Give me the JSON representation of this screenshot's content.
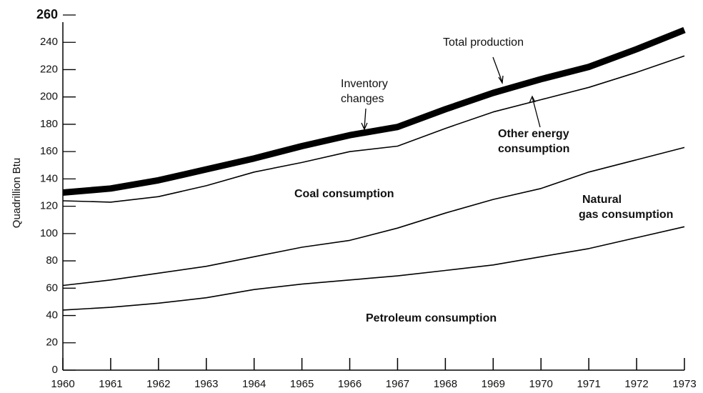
{
  "chart_data": {
    "type": "line",
    "y_label": "Quadrillion Btu",
    "x": [
      1960,
      1961,
      1962,
      1963,
      1964,
      1965,
      1966,
      1967,
      1968,
      1969,
      1970,
      1971,
      1972,
      1973
    ],
    "xlim": [
      1960,
      1973
    ],
    "xticks": [
      1960,
      1961,
      1962,
      1963,
      1964,
      1965,
      1966,
      1967,
      1968,
      1969,
      1970,
      1971,
      1972,
      1973
    ],
    "ylim": [
      0,
      260
    ],
    "yticks": [
      0,
      20,
      40,
      60,
      80,
      100,
      120,
      140,
      160,
      180,
      200,
      220,
      240,
      260
    ],
    "series": [
      {
        "color": "#000000",
        "width": 9,
        "values": [
          130,
          133,
          139,
          147,
          155,
          164,
          172,
          178,
          191,
          203,
          213,
          222,
          235,
          249
        ]
      },
      {
        "color": "#000000",
        "width": 1.6,
        "values": [
          124,
          123,
          127,
          135,
          145,
          152,
          160,
          164,
          177,
          189,
          198,
          207,
          218,
          230
        ]
      },
      {
        "color": "#000000",
        "width": 1.6,
        "values": [
          62,
          66,
          71,
          76,
          83,
          90,
          95,
          104,
          115,
          125,
          133,
          145,
          154,
          163
        ]
      },
      {
        "color": "#000000",
        "width": 1.6,
        "values": [
          44,
          46,
          49,
          53,
          59,
          63,
          66,
          69,
          73,
          77,
          83,
          89,
          97,
          105
        ]
      }
    ],
    "annotations": [
      {
        "lines": [
          "Total production"
        ]
      },
      {
        "lines": [
          "Inventory",
          "changes"
        ]
      },
      {
        "lines": [
          "Other energy",
          "consumption"
        ],
        "bold": true
      },
      {
        "lines": [
          "Coal consumption"
        ],
        "bold": true
      },
      {
        "lines": [
          "Natural",
          "gas consumption"
        ],
        "bold": true
      },
      {
        "lines": [
          "Petroleum consumption"
        ],
        "bold": true
      }
    ]
  }
}
